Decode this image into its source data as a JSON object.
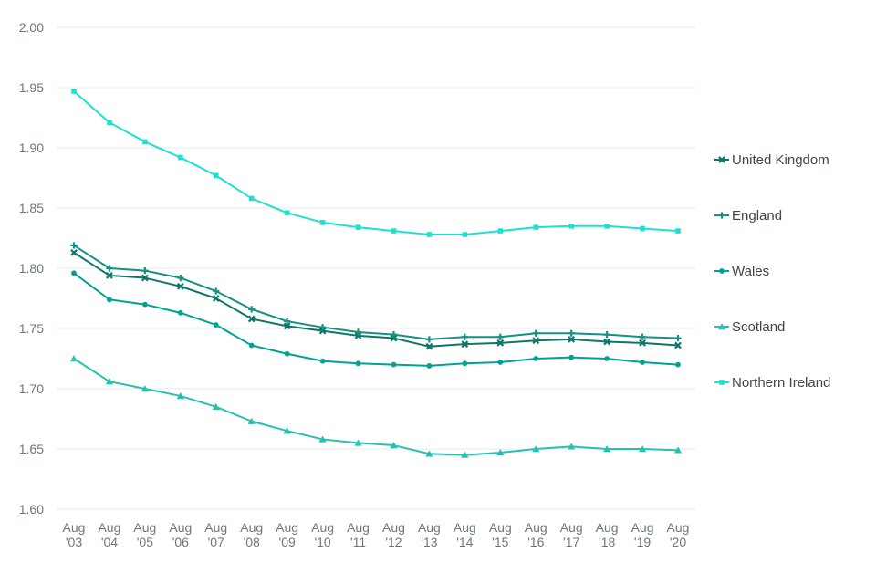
{
  "chart_data": {
    "type": "line",
    "title": "",
    "xlabel": "",
    "ylabel": "",
    "ylim": [
      1.6,
      2.0
    ],
    "ytick_step": 0.05,
    "yticks": [
      "2.00",
      "1.95",
      "1.90",
      "1.85",
      "1.80",
      "1.75",
      "1.70",
      "1.65",
      "1.60"
    ],
    "grid": true,
    "legend_position": "right",
    "categories": [
      {
        "month": "Aug",
        "year": "'03"
      },
      {
        "month": "Aug",
        "year": "'04"
      },
      {
        "month": "Aug",
        "year": "'05"
      },
      {
        "month": "Aug",
        "year": "'06"
      },
      {
        "month": "Aug",
        "year": "'07"
      },
      {
        "month": "Aug",
        "year": "'08"
      },
      {
        "month": "Aug",
        "year": "'09"
      },
      {
        "month": "Aug",
        "year": "'10"
      },
      {
        "month": "Aug",
        "year": "'11"
      },
      {
        "month": "Aug",
        "year": "'12"
      },
      {
        "month": "Aug",
        "year": "'13"
      },
      {
        "month": "Aug",
        "year": "'14"
      },
      {
        "month": "Aug",
        "year": "'15"
      },
      {
        "month": "Aug",
        "year": "'16"
      },
      {
        "month": "Aug",
        "year": "'17"
      },
      {
        "month": "Aug",
        "year": "'18"
      },
      {
        "month": "Aug",
        "year": "'19"
      },
      {
        "month": "Aug",
        "year": "'20"
      }
    ],
    "series": [
      {
        "name": "United Kingdom",
        "marker": "x",
        "color": "#0e7568",
        "values": [
          1.813,
          1.794,
          1.792,
          1.785,
          1.775,
          1.758,
          1.752,
          1.748,
          1.744,
          1.742,
          1.735,
          1.737,
          1.738,
          1.74,
          1.741,
          1.739,
          1.738,
          1.736
        ]
      },
      {
        "name": "England",
        "marker": "plus",
        "color": "#169184",
        "values": [
          1.819,
          1.8,
          1.798,
          1.792,
          1.781,
          1.766,
          1.756,
          1.751,
          1.747,
          1.745,
          1.741,
          1.743,
          1.743,
          1.746,
          1.746,
          1.745,
          1.743,
          1.742
        ]
      },
      {
        "name": "Wales",
        "marker": "circle",
        "color": "#00a294",
        "values": [
          1.796,
          1.774,
          1.77,
          1.763,
          1.753,
          1.736,
          1.729,
          1.723,
          1.721,
          1.72,
          1.719,
          1.721,
          1.722,
          1.725,
          1.726,
          1.725,
          1.722,
          1.72
        ]
      },
      {
        "name": "Scotland",
        "marker": "triangle",
        "color": "#28c0b1",
        "values": [
          1.725,
          1.706,
          1.7,
          1.694,
          1.685,
          1.673,
          1.665,
          1.658,
          1.655,
          1.653,
          1.646,
          1.645,
          1.647,
          1.65,
          1.652,
          1.65,
          1.65,
          1.649
        ]
      },
      {
        "name": "Northern Ireland",
        "marker": "square",
        "color": "#1fe0d0",
        "values": [
          1.947,
          1.921,
          1.905,
          1.892,
          1.877,
          1.858,
          1.846,
          1.838,
          1.834,
          1.831,
          1.828,
          1.828,
          1.831,
          1.834,
          1.835,
          1.835,
          1.833,
          1.831
        ]
      }
    ]
  }
}
